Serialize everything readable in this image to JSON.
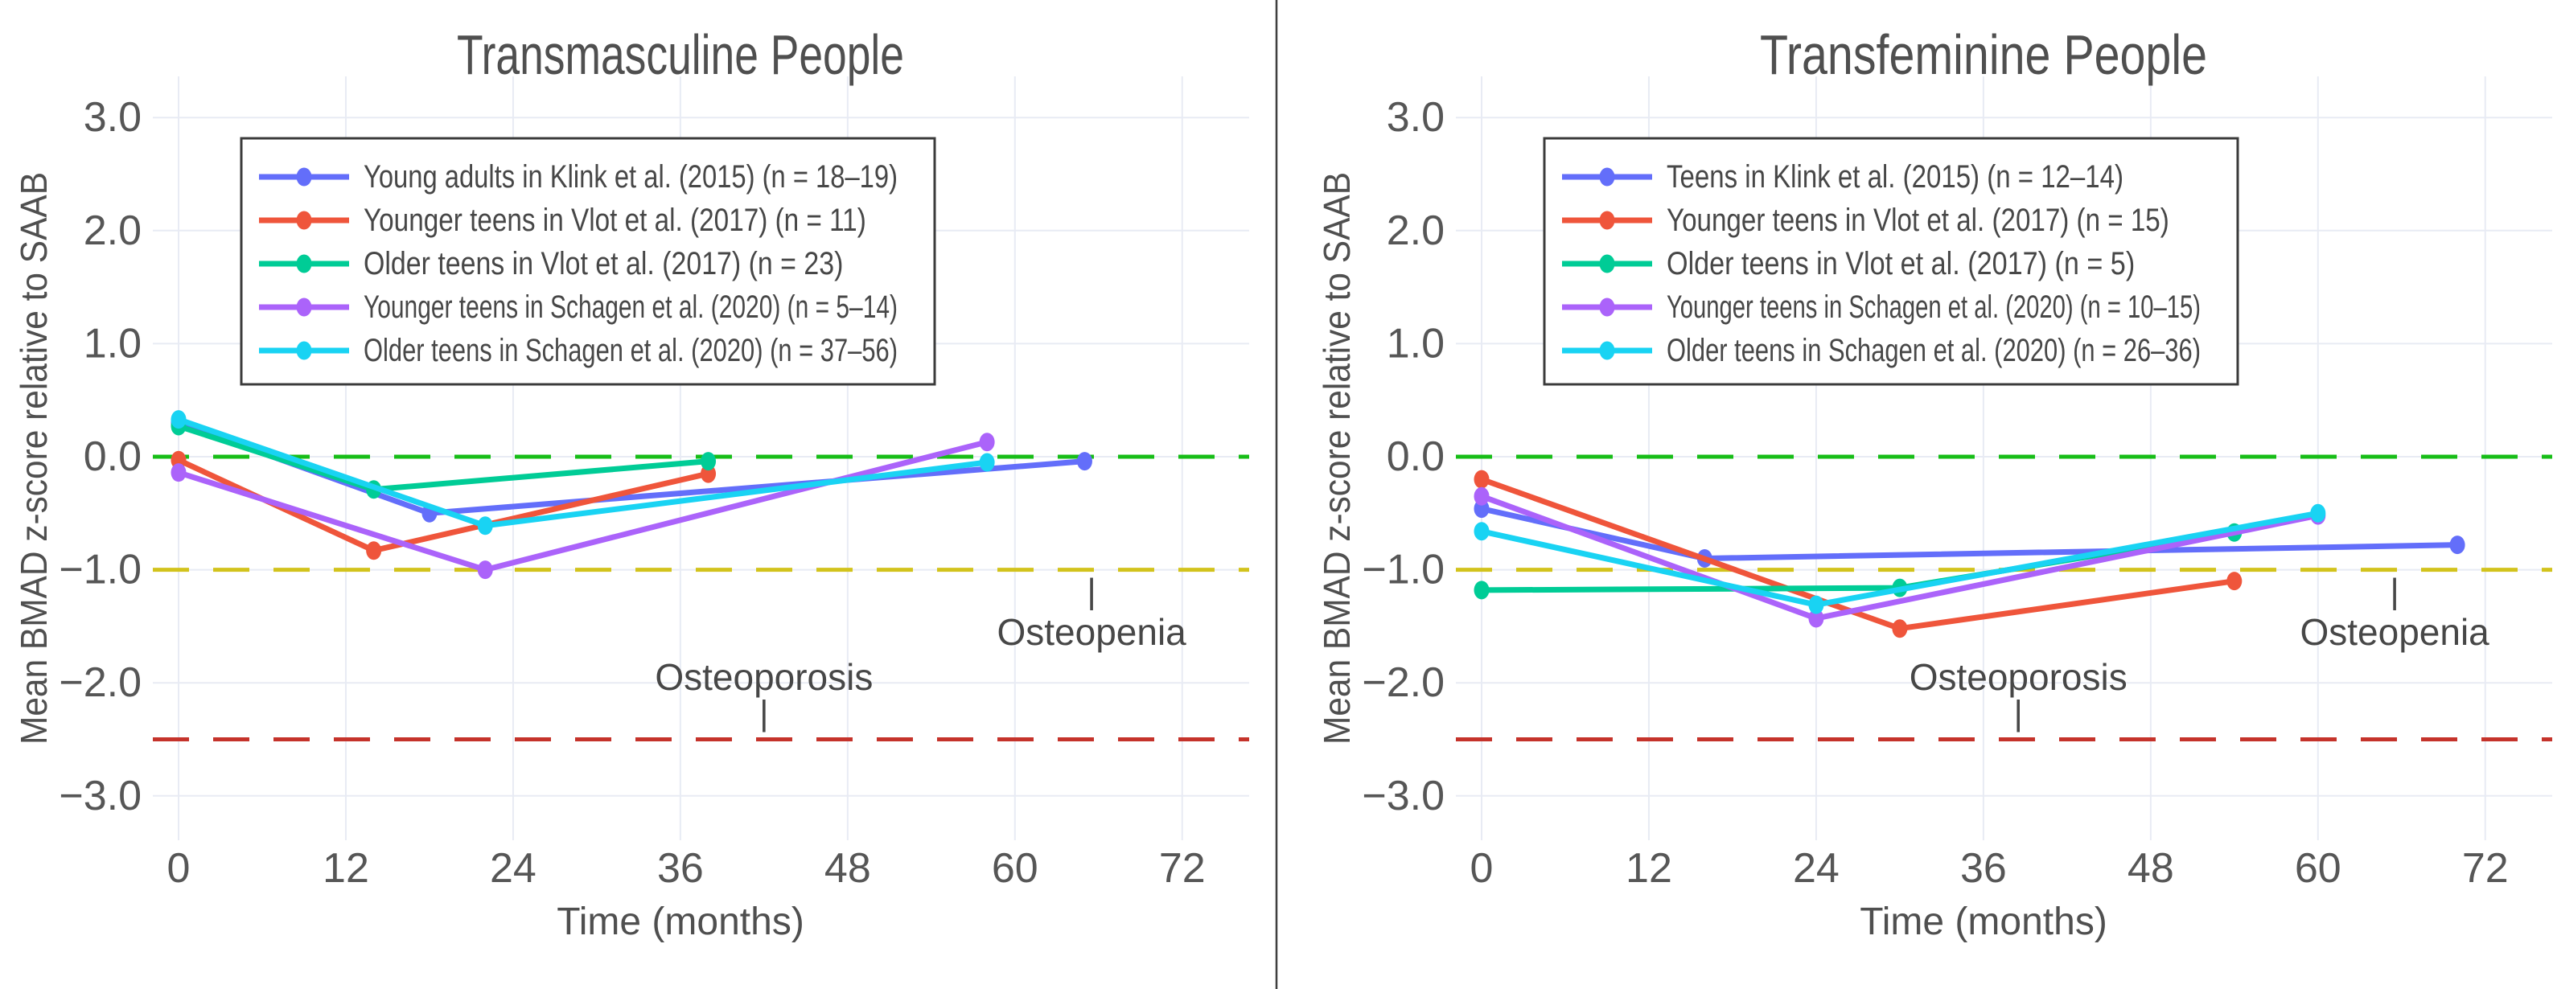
{
  "page": {
    "background": "#ffffff",
    "divider_color": "#3f3f3f"
  },
  "colors": {
    "grid": "#e8ebf4",
    "tick_text": "#565656",
    "title_text": "#4f4f4f",
    "annotation_text": "#474747",
    "legend_border": "#3b3b3b",
    "zero_line": "#17bd17",
    "osteopenia_line": "#d2c31c",
    "osteoporosis_line": "#c5332b"
  },
  "chart_data": [
    {
      "type": "line",
      "title": "Transmasculine People",
      "xlabel": "Time (months)",
      "ylabel": "Mean BMAD z-score relative to SAAB",
      "x_ticks": [
        "0",
        "12",
        "24",
        "36",
        "48",
        "60",
        "72"
      ],
      "x_tick_values": [
        0,
        12,
        24,
        36,
        48,
        60,
        72
      ],
      "y_ticks": [
        "3.0",
        "2.0",
        "1.0",
        "0.0",
        "−1.0",
        "−2.0",
        "−3.0"
      ],
      "y_tick_values": [
        3,
        2,
        1,
        0,
        -1,
        -2,
        -3
      ],
      "xlim": [
        -1.9,
        74.8
      ],
      "ylim": [
        -3.38,
        3.36
      ],
      "grid": true,
      "legend_position": "upper left",
      "reference_lines": [
        {
          "z": 0.0,
          "color_key": "zero_line"
        },
        {
          "z": -1.0,
          "color_key": "osteopenia_line"
        },
        {
          "z": -2.5,
          "color_key": "osteoporosis_line"
        }
      ],
      "annotations": [
        {
          "text": "Osteopenia",
          "tick": "|",
          "x": 65.5,
          "text_z": -1.55,
          "tick_z": -1.19
        },
        {
          "text": "Osteoporosis",
          "tick": "|",
          "x": 42.0,
          "text_z": -1.95,
          "tick_z": -2.27
        }
      ],
      "series": [
        {
          "name": "Young adults in Klink et al. (2015) (n = 18–19)",
          "color": "#636EFA",
          "points": [
            [
              0,
              0.3
            ],
            [
              18,
              -0.5
            ],
            [
              65,
              -0.04
            ]
          ]
        },
        {
          "name": "Younger teens in Vlot et al. (2017) (n = 11)",
          "color": "#EF553B",
          "points": [
            [
              0,
              -0.03
            ],
            [
              14,
              -0.83
            ],
            [
              38,
              -0.15
            ]
          ]
        },
        {
          "name": "Older teens in Vlot et al. (2017) (n = 23)",
          "color": "#00CC96",
          "points": [
            [
              0,
              0.27
            ],
            [
              14,
              -0.29
            ],
            [
              38,
              -0.04
            ]
          ]
        },
        {
          "name": "Younger teens in Schagen et al. (2020) (n = 5–14)",
          "color": "#AB63FA",
          "points": [
            [
              0,
              -0.14
            ],
            [
              22,
              -1.0
            ],
            [
              58,
              0.13
            ]
          ]
        },
        {
          "name": "Older teens in Schagen et al. (2020) (n = 37–56)",
          "color": "#19D3F3",
          "points": [
            [
              0,
              0.33
            ],
            [
              22,
              -0.61
            ],
            [
              58,
              -0.05
            ]
          ]
        }
      ]
    },
    {
      "type": "line",
      "title": "Transfeminine People",
      "xlabel": "Time (months)",
      "ylabel": "Mean BMAD z-score relative to SAAB",
      "x_ticks": [
        "0",
        "12",
        "24",
        "36",
        "48",
        "60",
        "72"
      ],
      "x_tick_values": [
        0,
        12,
        24,
        36,
        48,
        60,
        72
      ],
      "y_ticks": [
        "3.0",
        "2.0",
        "1.0",
        "0.0",
        "−1.0",
        "−2.0",
        "−3.0"
      ],
      "y_tick_values": [
        3,
        2,
        1,
        0,
        -1,
        -2,
        -3
      ],
      "xlim": [
        -1.9,
        74.8
      ],
      "ylim": [
        -3.38,
        3.36
      ],
      "grid": true,
      "legend_position": "upper left",
      "reference_lines": [
        {
          "z": 0.0,
          "color_key": "zero_line"
        },
        {
          "z": -1.0,
          "color_key": "osteopenia_line"
        },
        {
          "z": -2.5,
          "color_key": "osteoporosis_line"
        }
      ],
      "annotations": [
        {
          "text": "Osteopenia",
          "tick": "|",
          "x": 65.5,
          "text_z": -1.55,
          "tick_z": -1.19
        },
        {
          "text": "Osteoporosis",
          "tick": "|",
          "x": 38.5,
          "text_z": -1.95,
          "tick_z": -2.27
        }
      ],
      "series": [
        {
          "name": "Teens in Klink et al. (2015) (n = 12–14)",
          "color": "#636EFA",
          "points": [
            [
              0,
              -0.46
            ],
            [
              16,
              -0.9
            ],
            [
              70,
              -0.78
            ]
          ]
        },
        {
          "name": "Younger teens in Vlot et al. (2017) (n = 15)",
          "color": "#EF553B",
          "points": [
            [
              0,
              -0.2
            ],
            [
              30,
              -1.52
            ],
            [
              54,
              -1.1
            ]
          ]
        },
        {
          "name": "Older teens in Vlot et al. (2017) (n = 5)",
          "color": "#00CC96",
          "points": [
            [
              0,
              -1.18
            ],
            [
              30,
              -1.16
            ],
            [
              54,
              -0.67
            ]
          ]
        },
        {
          "name": "Younger teens in Schagen et al. (2020) (n = 10–15)",
          "color": "#AB63FA",
          "points": [
            [
              0,
              -0.35
            ],
            [
              24,
              -1.43
            ],
            [
              60,
              -0.52
            ]
          ]
        },
        {
          "name": "Older teens in Schagen et al. (2020) (n = 26–36)",
          "color": "#19D3F3",
          "points": [
            [
              0,
              -0.66
            ],
            [
              24,
              -1.31
            ],
            [
              60,
              -0.5
            ]
          ]
        }
      ]
    }
  ]
}
